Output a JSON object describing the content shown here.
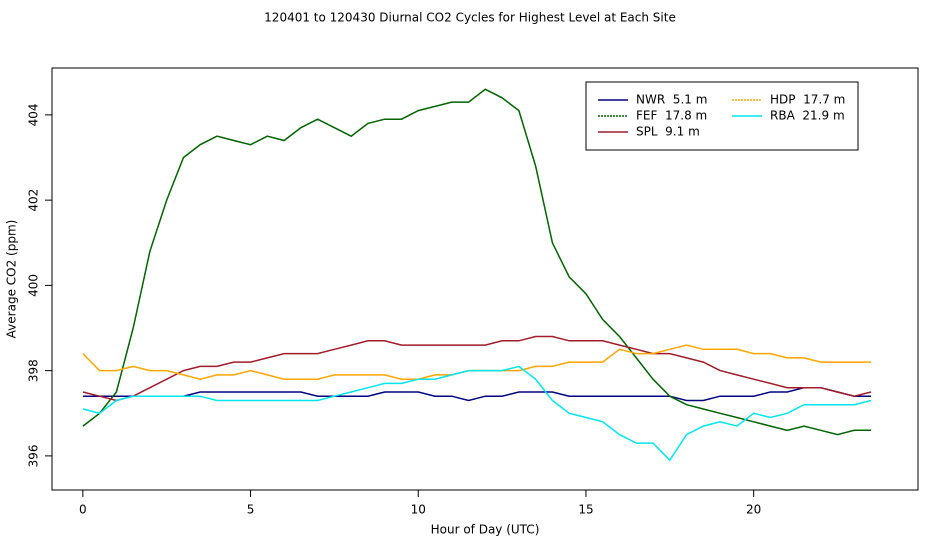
{
  "chart_data": {
    "type": "line",
    "title": "120401  to  120430 Diurnal CO2 Cycles for Highest Level at Each Site",
    "x_label": "Hour of Day (UTC)",
    "y_label": "Average CO2 (ppm)",
    "x": [
      0,
      0.5,
      1,
      1.5,
      2,
      2.5,
      3,
      3.5,
      4,
      4.5,
      5,
      5.5,
      6,
      6.5,
      7,
      7.5,
      8,
      8.5,
      9,
      9.5,
      10,
      10.5,
      11,
      11.5,
      12,
      12.5,
      13,
      13.5,
      14,
      14.5,
      15,
      15.5,
      16,
      16.5,
      17,
      17.5,
      18,
      18.5,
      19,
      19.5,
      20,
      20.5,
      21,
      21.5,
      22,
      22.5,
      23,
      23.5
    ],
    "xlim": [
      -0.92,
      24.9
    ],
    "xticks": [
      0,
      5,
      10,
      15,
      20
    ],
    "ylim": [
      395.2,
      405.1
    ],
    "yticks": [
      396,
      398,
      400,
      402,
      404
    ],
    "grid": false,
    "legend": "top-right",
    "series": [
      {
        "name": "NWR  5.1 m",
        "color": "#000080",
        "values": [
          397.4,
          397.4,
          397.4,
          397.4,
          397.4,
          397.4,
          397.4,
          397.5,
          397.5,
          397.5,
          397.5,
          397.5,
          397.5,
          397.5,
          397.4,
          397.4,
          397.4,
          397.4,
          397.5,
          397.5,
          397.5,
          397.4,
          397.4,
          397.3,
          397.4,
          397.4,
          397.5,
          397.5,
          397.5,
          397.4,
          397.4,
          397.4,
          397.4,
          397.4,
          397.4,
          397.4,
          397.3,
          397.3,
          397.4,
          397.4,
          397.4,
          397.5,
          397.5,
          397.6,
          397.6,
          397.5,
          397.4,
          397.4
        ]
      },
      {
        "name": "FEF  17.8 m",
        "color": "#006400",
        "values": [
          396.7,
          397.0,
          397.5,
          399.0,
          400.8,
          402.0,
          403.0,
          403.3,
          403.5,
          403.4,
          403.3,
          403.5,
          403.4,
          403.7,
          403.9,
          403.7,
          403.5,
          403.8,
          403.9,
          403.9,
          404.1,
          404.2,
          404.3,
          404.3,
          404.6,
          404.4,
          404.1,
          402.8,
          401.0,
          400.2,
          399.8,
          399.2,
          398.8,
          398.3,
          397.8,
          397.4,
          397.2,
          397.1,
          397.0,
          396.9,
          396.8,
          396.7,
          396.6,
          396.7,
          396.6,
          396.5,
          396.6,
          396.6
        ]
      },
      {
        "name": "SPL  9.1 m",
        "color": "#a01c28",
        "values": [
          397.5,
          397.4,
          397.3,
          397.4,
          397.6,
          397.8,
          398.0,
          398.1,
          398.1,
          398.2,
          398.2,
          398.3,
          398.4,
          398.4,
          398.4,
          398.5,
          398.6,
          398.7,
          398.7,
          398.6,
          398.6,
          398.6,
          398.6,
          398.6,
          398.6,
          398.7,
          398.7,
          398.8,
          398.8,
          398.7,
          398.7,
          398.7,
          398.6,
          398.5,
          398.4,
          398.4,
          398.3,
          398.2,
          398.0,
          397.9,
          397.8,
          397.7,
          397.6,
          397.6,
          397.6,
          397.5,
          397.4,
          397.5
        ]
      },
      {
        "name": "HDP  17.7 m",
        "color": "#ffa500",
        "values": [
          398.4,
          398.0,
          398.0,
          398.1,
          398.0,
          398.0,
          397.9,
          397.8,
          397.9,
          397.9,
          398.0,
          397.9,
          397.8,
          397.8,
          397.8,
          397.9,
          397.9,
          397.9,
          397.9,
          397.8,
          397.8,
          397.9,
          397.9,
          398.0,
          398.0,
          398.0,
          398.0,
          398.1,
          398.1,
          398.2,
          398.2,
          398.2,
          398.5,
          398.4,
          398.4,
          398.5,
          398.6,
          398.5,
          398.5,
          398.5,
          398.4,
          398.4,
          398.3,
          398.3,
          398.2,
          398.2,
          398.2,
          398.2
        ]
      },
      {
        "name": "RBA  21.9 m",
        "color": "#00e5ee",
        "values": [
          397.1,
          397.0,
          397.3,
          397.4,
          397.4,
          397.4,
          397.4,
          397.4,
          397.3,
          397.3,
          397.3,
          397.3,
          397.3,
          397.3,
          397.3,
          397.4,
          397.5,
          397.6,
          397.7,
          397.7,
          397.8,
          397.8,
          397.9,
          398.0,
          398.0,
          398.0,
          398.1,
          397.8,
          397.3,
          397.0,
          396.9,
          396.8,
          396.5,
          396.3,
          396.3,
          395.9,
          396.5,
          396.7,
          396.8,
          396.7,
          397.0,
          396.9,
          397.0,
          397.2,
          397.2,
          397.2,
          397.2,
          397.3
        ]
      }
    ]
  }
}
